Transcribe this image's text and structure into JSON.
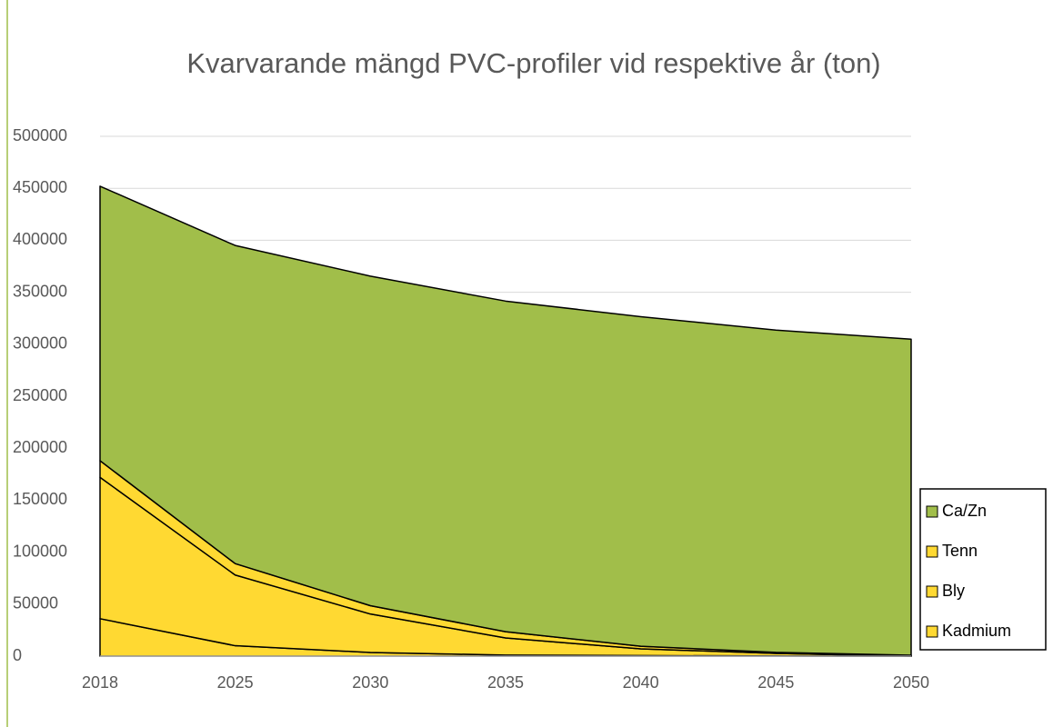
{
  "chart_data": {
    "type": "stacked_area",
    "title": "Kvarvarande mängd PVC-profiler vid respektive år (ton)",
    "categories": [
      "2018",
      "2025",
      "2030",
      "2035",
      "2040",
      "2045",
      "2050"
    ],
    "series": [
      {
        "name": "Kadmium",
        "color": "#ffd932",
        "values": [
          36000,
          10000,
          3500,
          1000,
          500,
          200,
          0
        ]
      },
      {
        "name": "Bly",
        "color": "#ffd932",
        "values": [
          136000,
          68000,
          37000,
          16500,
          6500,
          2400,
          0
        ]
      },
      {
        "name": "Tenn",
        "color": "#ffd932",
        "values": [
          16000,
          11000,
          8000,
          6000,
          2500,
          1000,
          900
        ]
      },
      {
        "name": "Ca/Zn",
        "color": "#a1be4a",
        "values": [
          264000,
          306000,
          317000,
          318000,
          317000,
          310000,
          304000
        ]
      }
    ],
    "ylim": [
      0,
      500000
    ],
    "yticks": [
      0,
      50000,
      100000,
      150000,
      200000,
      250000,
      300000,
      350000,
      400000,
      450000,
      500000
    ],
    "grid": true,
    "legend": "right"
  }
}
